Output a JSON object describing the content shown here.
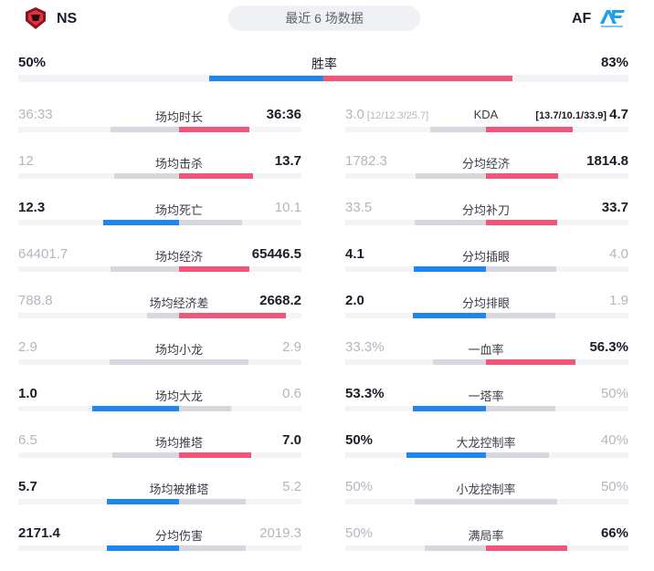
{
  "header": {
    "left_team": "NS",
    "center": "最近 6 场数据",
    "right_team": "AF",
    "right_logo_text": "AF"
  },
  "colors": {
    "blue": "#1f86ee",
    "red": "#f1557a",
    "gray": "#d6d8de",
    "track": "#f3f4f7"
  },
  "win": {
    "label": "胜率",
    "left": "50%",
    "right": "83%",
    "left_frac": 0.376,
    "right_frac": 0.624
  },
  "left_col": [
    {
      "label": "场均时长",
      "left": "36:33",
      "right": "36:36",
      "winner": "right",
      "left_frac": 0.4965,
      "right_frac": 0.5035
    },
    {
      "label": "场均击杀",
      "left": "12",
      "right": "13.7",
      "winner": "right",
      "left_frac": 0.467,
      "right_frac": 0.533
    },
    {
      "label": "场均死亡",
      "left": "12.3",
      "right": "10.1",
      "winner": "left",
      "left_frac": 0.549,
      "right_frac": 0.451
    },
    {
      "label": "场均经济",
      "left": "64401.7",
      "right": "65446.5",
      "winner": "right",
      "left_frac": 0.496,
      "right_frac": 0.504
    },
    {
      "label": "场均经济差",
      "left": "788.8",
      "right": "2668.2",
      "winner": "right",
      "left_frac": 0.228,
      "right_frac": 0.772
    },
    {
      "label": "场均小龙",
      "left": "2.9",
      "right": "2.9",
      "winner": "none",
      "left_frac": 0.5,
      "right_frac": 0.5
    },
    {
      "label": "场均大龙",
      "left": "1.0",
      "right": "0.6",
      "winner": "left",
      "left_frac": 0.625,
      "right_frac": 0.375
    },
    {
      "label": "场均推塔",
      "left": "6.5",
      "right": "7.0",
      "winner": "right",
      "left_frac": 0.481,
      "right_frac": 0.519
    },
    {
      "label": "场均被推塔",
      "left": "5.7",
      "right": "5.2",
      "winner": "left",
      "left_frac": 0.523,
      "right_frac": 0.477
    },
    {
      "label": "分均伤害",
      "left": "2171.4",
      "right": "2019.3",
      "winner": "left",
      "left_frac": 0.518,
      "right_frac": 0.482
    }
  ],
  "right_col": [
    {
      "label": "KDA",
      "left": "3.0",
      "left_sub": "[12/12.3/25.7]",
      "right": "4.7",
      "right_sub": "[13.7/10.1/33.9]",
      "winner": "right",
      "left_frac": 0.39,
      "right_frac": 0.61
    },
    {
      "label": "分均经济",
      "left": "1782.3",
      "right": "1814.8",
      "winner": "right",
      "left_frac": 0.496,
      "right_frac": 0.504
    },
    {
      "label": "分均补刀",
      "left": "33.5",
      "right": "33.7",
      "winner": "right",
      "left_frac": 0.498,
      "right_frac": 0.502
    },
    {
      "label": "分均插眼",
      "left": "4.1",
      "right": "4.0",
      "winner": "left",
      "left_frac": 0.506,
      "right_frac": 0.494
    },
    {
      "label": "分均排眼",
      "left": "2.0",
      "right": "1.9",
      "winner": "left",
      "left_frac": 0.513,
      "right_frac": 0.487
    },
    {
      "label": "一血率",
      "left": "33.3%",
      "right": "56.3%",
      "winner": "right",
      "left_frac": 0.372,
      "right_frac": 0.628
    },
    {
      "label": "一塔率",
      "left": "53.3%",
      "right": "50%",
      "winner": "left",
      "left_frac": 0.516,
      "right_frac": 0.484
    },
    {
      "label": "大龙控制率",
      "left": "50%",
      "right": "40%",
      "winner": "left",
      "left_frac": 0.556,
      "right_frac": 0.444
    },
    {
      "label": "小龙控制率",
      "left": "50%",
      "right": "50%",
      "winner": "none",
      "left_frac": 0.5,
      "right_frac": 0.5
    },
    {
      "label": "满局率",
      "left": "50%",
      "right": "66%",
      "winner": "right",
      "left_frac": 0.431,
      "right_frac": 0.569
    }
  ]
}
